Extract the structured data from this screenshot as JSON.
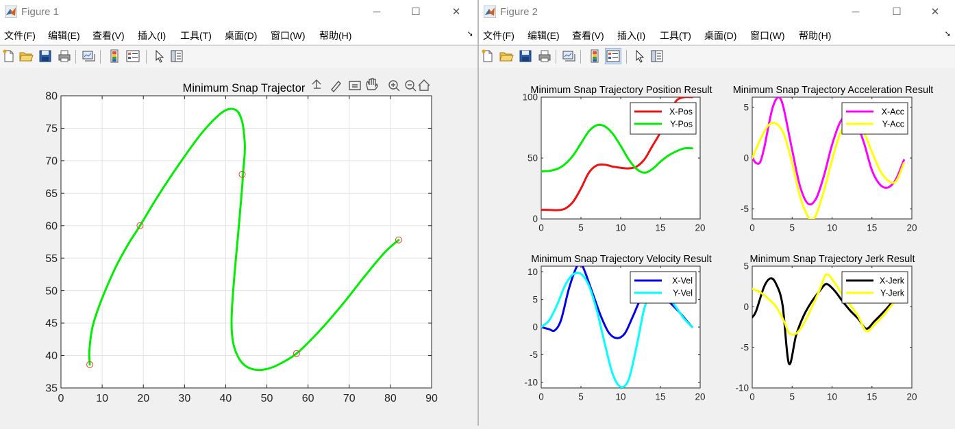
{
  "menu_items": [
    "文件(F)",
    "编辑(E)",
    "查看(V)",
    "插入(I)",
    "工具(T)",
    "桌面(D)",
    "窗口(W)",
    "帮助(H)"
  ],
  "window_controls": {
    "minimize": "─",
    "maximize": "☐",
    "close": "✕"
  },
  "figure1": {
    "title": "Figure 1",
    "chart_data": {
      "type": "line",
      "title": "Minimum Snap Trajector",
      "xlim": [
        0,
        90
      ],
      "ylim": [
        35,
        80
      ],
      "xticks": [
        "0",
        "10",
        "20",
        "30",
        "40",
        "50",
        "60",
        "70",
        "80",
        "90"
      ],
      "yticks": [
        "35",
        "40",
        "45",
        "50",
        "55",
        "60",
        "65",
        "70",
        "75",
        "80"
      ],
      "grid": true,
      "series": [
        {
          "color": "#00ee00",
          "x": [
            7.0,
            6.9,
            7.7,
            9.8,
            13.3,
            16.2,
            19.2,
            24,
            29.5,
            34.5,
            39.5,
            42.5,
            44.0,
            44.6,
            44.6,
            44.2,
            44.0,
            43.2,
            42.2,
            41.5,
            41.5,
            42.2,
            43.8,
            46.0,
            49.0,
            52.5,
            57.2,
            62.5,
            68,
            73.5,
            78.5,
            82.0
          ],
          "y": [
            38.6,
            40.8,
            44.5,
            48.5,
            53.6,
            57.0,
            60.0,
            65.0,
            70.2,
            74.5,
            77.6,
            77.8,
            76.0,
            73.0,
            71.0,
            68.0,
            66.0,
            60.0,
            53.0,
            47.0,
            43.5,
            41.0,
            39.0,
            38.0,
            37.8,
            38.5,
            40.3,
            43.6,
            47.6,
            52.0,
            55.8,
            57.8
          ]
        }
      ],
      "waypoints": {
        "color": "#e6442e",
        "x": [
          7,
          19.2,
          44,
          57.2,
          82
        ],
        "y": [
          38.6,
          60,
          67.9,
          40.3,
          57.8
        ]
      }
    }
  },
  "figure2": {
    "title": "Figure 2",
    "subplots": [
      {
        "chart_data": {
          "type": "line",
          "title": "Minimum Snap Trajectory Position Result",
          "xlim": [
            0,
            20
          ],
          "ylim": [
            0,
            100
          ],
          "xticks": [
            "0",
            "5",
            "10",
            "15",
            "20"
          ],
          "yticks": [
            "0",
            "50",
            "100"
          ],
          "grid": false,
          "legend": "top-right",
          "series": [
            {
              "name": "X-Pos",
              "color": "#ee1111",
              "x": [
                0,
                1,
                2,
                3,
                4,
                5,
                6,
                7,
                8,
                9,
                10,
                11,
                12,
                13,
                14,
                15,
                16,
                17,
                18,
                19
              ],
              "y": [
                7.5,
                7.5,
                7.2,
                8.5,
                14,
                25,
                38,
                44,
                44.5,
                43,
                42,
                41.5,
                43,
                49,
                60,
                71,
                85,
                97,
                100,
                100
              ]
            },
            {
              "name": "Y-Pos",
              "color": "#00ee00",
              "x": [
                0,
                1,
                2,
                3,
                4,
                5,
                6,
                7,
                8,
                9,
                10,
                11,
                12,
                13,
                14,
                15,
                16,
                17,
                18,
                19
              ],
              "y": [
                39,
                39.5,
                41,
                45,
                52,
                62,
                72,
                77,
                76,
                70,
                60,
                49,
                41,
                38,
                41,
                47,
                52,
                55.5,
                58,
                58
              ]
            }
          ]
        }
      },
      {
        "chart_data": {
          "type": "line",
          "title": "Minimum Snap Trajectory Acceleration Result",
          "xlim": [
            0,
            20
          ],
          "ylim": [
            -6,
            6
          ],
          "xticks": [
            "0",
            "5",
            "10",
            "15",
            "20"
          ],
          "yticks": [
            "-5",
            "0",
            "5"
          ],
          "grid": false,
          "legend": "top-right",
          "series": [
            {
              "name": "X-Acc",
              "color": "#ff00ff",
              "x": [
                0,
                0.5,
                1,
                1.5,
                2,
                2.5,
                3,
                3.5,
                4,
                5,
                6,
                7,
                8,
                9,
                10,
                11,
                12,
                13,
                14,
                15,
                16,
                17,
                18,
                19
              ],
              "y": [
                0,
                -0.5,
                -0.4,
                1.0,
                3.0,
                4.8,
                5.8,
                5.9,
                4.7,
                0.8,
                -2.8,
                -4.5,
                -4.0,
                -1.7,
                1.3,
                3.5,
                4.3,
                3.6,
                1.5,
                -1.2,
                -2.6,
                -2.9,
                -2.1,
                -0.2
              ]
            },
            {
              "name": "Y-Acc",
              "color": "#ffff00",
              "x": [
                0,
                1,
                2,
                3,
                4,
                5,
                6,
                7,
                7.5,
                8,
                9,
                10,
                11,
                12,
                13,
                14,
                15,
                16,
                17,
                18,
                19
              ],
              "y": [
                0,
                1.8,
                3.2,
                3.4,
                2.3,
                -0.5,
                -3.8,
                -5.8,
                -6.0,
                -5.6,
                -3.2,
                -0.2,
                2.4,
                3.5,
                3.5,
                2.5,
                0.6,
                -1.2,
                -2.2,
                -2.3,
                -0.5
              ]
            }
          ]
        }
      },
      {
        "chart_data": {
          "type": "line",
          "title": "Minimum Snap Trajectory Velocity Result",
          "xlim": [
            0,
            20
          ],
          "ylim": [
            -11,
            11
          ],
          "xticks": [
            "0",
            "5",
            "10",
            "15",
            "20"
          ],
          "yticks": [
            "-10",
            "-5",
            "0",
            "5",
            "10"
          ],
          "grid": false,
          "legend": "top-right",
          "series": [
            {
              "name": "X-Vel",
              "color": "#0000ee",
              "x": [
                0,
                1,
                1.7,
                2.5,
                3.5,
                4.5,
                5,
                5.5,
                6.5,
                7.5,
                8.5,
                9.5,
                10.5,
                11.5,
                12.5,
                13.5,
                14.5,
                15.5,
                16.5,
                17.5,
                18.5,
                19
              ],
              "y": [
                0,
                -0.4,
                -0.6,
                1.3,
                7.0,
                11.0,
                11.4,
                10.0,
                6.0,
                2.0,
                -1.0,
                -2.0,
                -1.2,
                1.8,
                5.0,
                6.5,
                6.3,
                5.3,
                4.0,
                2.5,
                0.8,
                0
              ]
            },
            {
              "name": "Y-Vel",
              "color": "#00ffff",
              "x": [
                0,
                1,
                2,
                3,
                4,
                5,
                6,
                7,
                8,
                9,
                10,
                11,
                12,
                13,
                14,
                15,
                16,
                17,
                18,
                19
              ],
              "y": [
                0,
                1.2,
                4.0,
                7.5,
                9.5,
                9.6,
                7.5,
                3.0,
                -3.0,
                -8.5,
                -10.8,
                -9.5,
                -3.5,
                3.5,
                7.0,
                7.0,
                5.5,
                3.5,
                1.5,
                0
              ]
            }
          ]
        }
      },
      {
        "chart_data": {
          "type": "line",
          "title": "Minimum Snap Trajectory Jerk Result",
          "xlim": [
            0,
            20
          ],
          "ylim": [
            -10,
            5
          ],
          "xticks": [
            "0",
            "5",
            "10",
            "15",
            "20"
          ],
          "yticks": [
            "-10",
            "-5",
            "0",
            "5"
          ],
          "grid": false,
          "legend": "top-right",
          "series": [
            {
              "name": "X-Jerk",
              "color": "#000000",
              "x": [
                0,
                0.5,
                1.5,
                2.3,
                3,
                3.8,
                4.6,
                5.5,
                6.5,
                7.5,
                8.5,
                9.3,
                10.3,
                11.3,
                12.3,
                13.3,
                14.3,
                15.3,
                16.3,
                17.3,
                18.3
              ],
              "y": [
                -1.3,
                -0.5,
                2.5,
                3.5,
                2.8,
                0.2,
                -7.0,
                -3.5,
                -1.0,
                0.7,
                2.0,
                2.8,
                2.0,
                0.7,
                -0.5,
                -1.5,
                -2.7,
                -1.8,
                -0.8,
                0.3,
                1.6
              ]
            },
            {
              "name": "Y-Jerk",
              "color": "#ffff00",
              "x": [
                0,
                1,
                2,
                3,
                4,
                4.6,
                5.5,
                6.5,
                7.5,
                8.5,
                9.3,
                10.3,
                11.3,
                12.3,
                13.3,
                14.3,
                15.3,
                16.3,
                17.3,
                18.3,
                19
              ],
              "y": [
                2.2,
                1.8,
                1.0,
                0,
                -1.8,
                -3.2,
                -3.3,
                -2.0,
                0,
                2.2,
                4.0,
                3.0,
                1.5,
                0.2,
                -1.2,
                -3.0,
                -2.2,
                -1.2,
                0,
                1.2,
                2.4
              ]
            }
          ]
        }
      }
    ]
  }
}
